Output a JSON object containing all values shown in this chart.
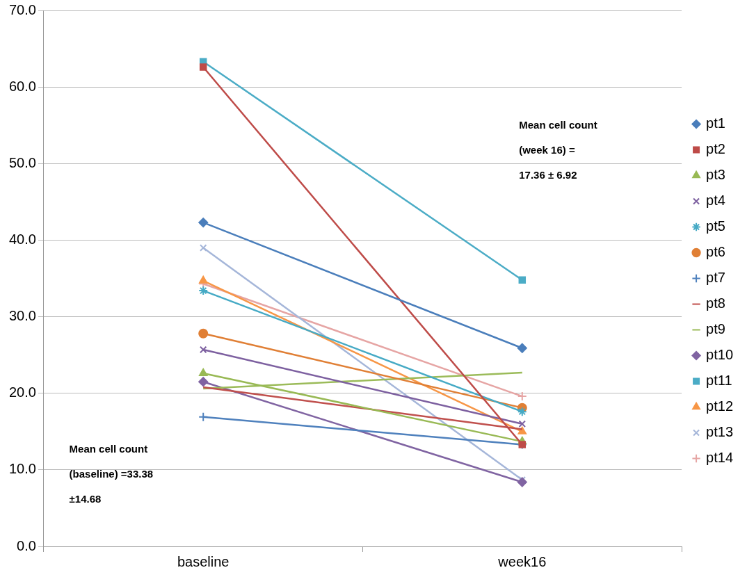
{
  "chart_data": {
    "type": "line",
    "categories": [
      "baseline",
      "week16"
    ],
    "ylim": [
      0,
      70
    ],
    "yticks": [
      {
        "value": 0,
        "label": "0.0"
      },
      {
        "value": 10,
        "label": "10.0"
      },
      {
        "value": 20,
        "label": "20.0"
      },
      {
        "value": 30,
        "label": "30.0"
      },
      {
        "value": 40,
        "label": "40.0"
      },
      {
        "value": 50,
        "label": "50.0"
      },
      {
        "value": 60,
        "label": "60.0"
      },
      {
        "value": 70,
        "label": "70.0"
      }
    ],
    "grid": "y",
    "legend": "right",
    "series": [
      {
        "name": "pt1",
        "color": "#4a7ebb",
        "marker": "diamond",
        "values": [
          42.3,
          25.9
        ]
      },
      {
        "name": "pt2",
        "color": "#be4b48",
        "marker": "square",
        "values": [
          62.6,
          13.3
        ]
      },
      {
        "name": "pt3",
        "color": "#98b954",
        "marker": "triangle",
        "values": [
          22.6,
          13.7
        ]
      },
      {
        "name": "pt4",
        "color": "#7d60a0",
        "marker": "cross",
        "values": [
          25.7,
          16.0
        ]
      },
      {
        "name": "pt5",
        "color": "#46aac5",
        "marker": "cross",
        "values": [
          33.4,
          17.6
        ]
      },
      {
        "name": "pt6",
        "color": "#e07f35",
        "marker": "circle",
        "values": [
          27.8,
          18.1
        ]
      },
      {
        "name": "pt7",
        "color": "#4f81bd",
        "marker": "cross",
        "values": [
          16.9,
          13.3
        ]
      },
      {
        "name": "pt8",
        "color": "#c0504d",
        "marker": "none",
        "values": [
          20.8,
          15.3
        ]
      },
      {
        "name": "pt9",
        "color": "#9bbb59",
        "marker": "none",
        "values": [
          20.6,
          22.7
        ]
      },
      {
        "name": "pt10",
        "color": "#8064a2",
        "marker": "diamond",
        "values": [
          21.5,
          8.4
        ]
      },
      {
        "name": "pt11",
        "color": "#4bacc6",
        "marker": "square",
        "values": [
          63.3,
          34.8
        ]
      },
      {
        "name": "pt12",
        "color": "#f79646",
        "marker": "triangle",
        "values": [
          34.7,
          15.0
        ]
      },
      {
        "name": "pt13",
        "color": "#a5b6d9",
        "marker": "cross",
        "values": [
          39.0,
          8.7
        ]
      },
      {
        "name": "pt14",
        "color": "#e6a5a4",
        "marker": "cross",
        "values": [
          34.3,
          19.6
        ]
      }
    ],
    "annotations": [
      "Mean cell count\n(week 16) =\n17.36 ± 6.92",
      "Mean cell count\n(baseline) =33.38\n±14.68"
    ]
  }
}
